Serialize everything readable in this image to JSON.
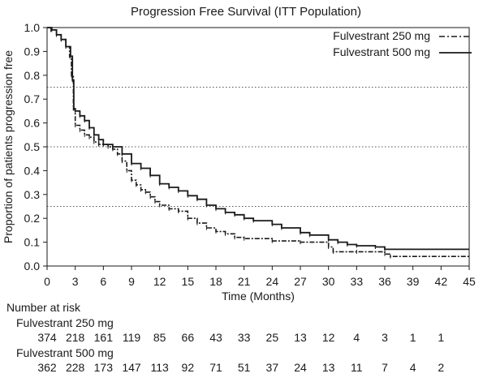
{
  "chart_data": {
    "type": "line",
    "title": "Progression Free Survival (ITT Population)",
    "xlabel": "Time (Months)",
    "ylabel": "Proportion of patients progression free",
    "xlim": [
      0,
      45
    ],
    "ylim": [
      0,
      1.0
    ],
    "x_ticks": [
      0,
      3,
      6,
      9,
      12,
      15,
      18,
      21,
      24,
      27,
      30,
      33,
      36,
      39,
      42,
      45
    ],
    "y_ticks": [
      "0.0",
      "0.1",
      "0.2",
      "0.3",
      "0.4",
      "0.5",
      "0.6",
      "0.7",
      "0.8",
      "0.9",
      "1.0"
    ],
    "reference_lines": [
      0.25,
      0.5,
      0.75
    ],
    "legend_position": "top-right",
    "series": [
      {
        "name": "Fulvestrant 250 mg",
        "style": "dash-dot",
        "points": [
          [
            0,
            1.0
          ],
          [
            0.4,
            0.99
          ],
          [
            1.0,
            0.97
          ],
          [
            1.5,
            0.95
          ],
          [
            2.0,
            0.92
          ],
          [
            2.4,
            0.88
          ],
          [
            2.6,
            0.8
          ],
          [
            2.8,
            0.66
          ],
          [
            3.0,
            0.59
          ],
          [
            3.5,
            0.57
          ],
          [
            4.0,
            0.55
          ],
          [
            4.5,
            0.54
          ],
          [
            5.0,
            0.52
          ],
          [
            5.5,
            0.51
          ],
          [
            6.0,
            0.51
          ],
          [
            6.5,
            0.5
          ],
          [
            7.0,
            0.49
          ],
          [
            7.5,
            0.47
          ],
          [
            8.0,
            0.44
          ],
          [
            8.5,
            0.4
          ],
          [
            9.0,
            0.36
          ],
          [
            9.5,
            0.34
          ],
          [
            10.0,
            0.32
          ],
          [
            10.5,
            0.31
          ],
          [
            11.0,
            0.29
          ],
          [
            11.5,
            0.27
          ],
          [
            12.0,
            0.255
          ],
          [
            13.0,
            0.24
          ],
          [
            14.0,
            0.23
          ],
          [
            15.0,
            0.2
          ],
          [
            16.0,
            0.18
          ],
          [
            17.0,
            0.16
          ],
          [
            18.0,
            0.145
          ],
          [
            19.0,
            0.135
          ],
          [
            20.0,
            0.12
          ],
          [
            21.0,
            0.115
          ],
          [
            24.0,
            0.105
          ],
          [
            27.0,
            0.1
          ],
          [
            30.0,
            0.08
          ],
          [
            30.5,
            0.06
          ],
          [
            33.0,
            0.06
          ],
          [
            36.0,
            0.05
          ],
          [
            36.6,
            0.04
          ],
          [
            45.0,
            0.04
          ]
        ]
      },
      {
        "name": "Fulvestrant 500 mg",
        "style": "solid",
        "points": [
          [
            0,
            1.0
          ],
          [
            0.5,
            0.99
          ],
          [
            1.0,
            0.97
          ],
          [
            1.5,
            0.95
          ],
          [
            2.0,
            0.92
          ],
          [
            2.5,
            0.88
          ],
          [
            2.7,
            0.78
          ],
          [
            2.85,
            0.66
          ],
          [
            3.0,
            0.65
          ],
          [
            3.5,
            0.63
          ],
          [
            4.0,
            0.61
          ],
          [
            4.5,
            0.58
          ],
          [
            5.0,
            0.55
          ],
          [
            5.5,
            0.53
          ],
          [
            6.0,
            0.51
          ],
          [
            7.0,
            0.5
          ],
          [
            8.0,
            0.47
          ],
          [
            9.0,
            0.43
          ],
          [
            10.0,
            0.41
          ],
          [
            11.0,
            0.38
          ],
          [
            12.0,
            0.345
          ],
          [
            13.0,
            0.33
          ],
          [
            14.0,
            0.315
          ],
          [
            15.0,
            0.295
          ],
          [
            16.0,
            0.28
          ],
          [
            17.0,
            0.255
          ],
          [
            18.0,
            0.24
          ],
          [
            19.0,
            0.225
          ],
          [
            20.0,
            0.215
          ],
          [
            21.0,
            0.2
          ],
          [
            22.0,
            0.19
          ],
          [
            24.0,
            0.175
          ],
          [
            25.0,
            0.16
          ],
          [
            27.0,
            0.14
          ],
          [
            28.0,
            0.13
          ],
          [
            30.0,
            0.11
          ],
          [
            31.0,
            0.1
          ],
          [
            32.0,
            0.09
          ],
          [
            33.0,
            0.085
          ],
          [
            35.0,
            0.08
          ],
          [
            36.0,
            0.07
          ],
          [
            45.0,
            0.07
          ]
        ]
      }
    ]
  },
  "risk_table": {
    "heading": "Number at risk",
    "rows": [
      {
        "label": "Fulvestrant 250 mg",
        "values": [
          "374",
          "218",
          "161",
          "119",
          "85",
          "66",
          "43",
          "33",
          "25",
          "13",
          "12",
          "4",
          "3",
          "1",
          "1"
        ]
      },
      {
        "label": "Fulvestrant 500 mg",
        "values": [
          "362",
          "228",
          "173",
          "147",
          "113",
          "92",
          "71",
          "51",
          "37",
          "24",
          "13",
          "11",
          "7",
          "4",
          "2"
        ]
      }
    ]
  },
  "colors": {
    "ink": "#1a1a1a",
    "reference": "#555555"
  }
}
